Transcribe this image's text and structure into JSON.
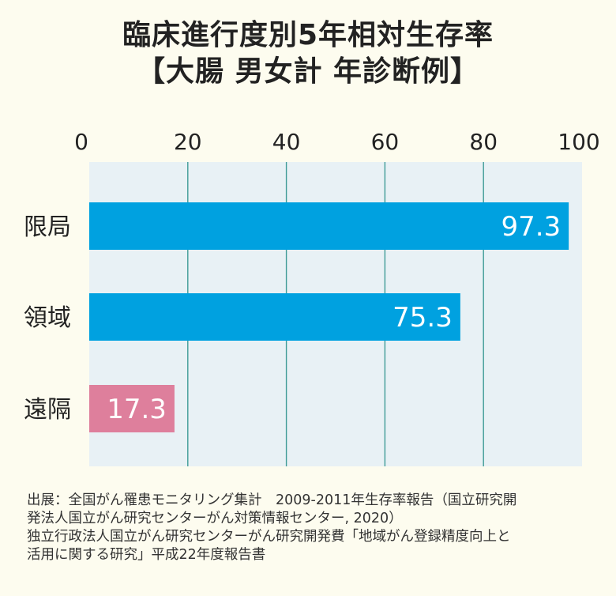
{
  "title_line1": "臨床進行度別5年相対生存率",
  "title_line2": "【大腸 男女計 年診断例】",
  "chart_data": {
    "type": "bar",
    "orientation": "horizontal",
    "categories": [
      "限局",
      "領域",
      "遠隔"
    ],
    "values": [
      97.3,
      75.3,
      17.3
    ],
    "value_labels": [
      "97.3",
      "75.3",
      "17.3"
    ],
    "xlim": [
      0,
      100
    ],
    "xticks": [
      0,
      20,
      40,
      60,
      80,
      100
    ],
    "xtick_labels": [
      "0",
      "20",
      "40",
      "60",
      "80",
      "100"
    ],
    "axis_position": "top",
    "grid": true,
    "bar_colors": [
      "#00a1e0",
      "#00a1e0",
      "#de7f9c"
    ],
    "plot_background": "#e8f1f5",
    "grid_color": "#3f9b97"
  },
  "source_lines": [
    "出展：全国がん罹患モニタリング集計　2009-2011年生存率報告（国立研究開",
    "発法人国立がん研究センターがん対策情報センター, 2020）",
    "独立行政法人国立がん研究センターがん研究開発費「地域がん登録精度向上と",
    "活用に関する研究」平成22年度報告書"
  ]
}
